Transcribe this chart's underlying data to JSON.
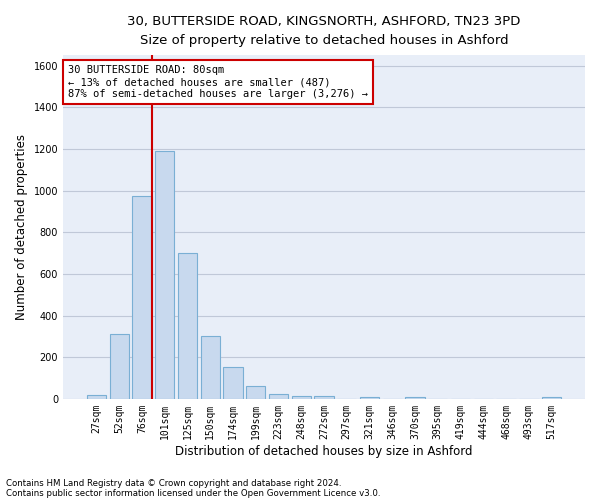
{
  "title1": "30, BUTTERSIDE ROAD, KINGSNORTH, ASHFORD, TN23 3PD",
  "title2": "Size of property relative to detached houses in Ashford",
  "xlabel": "Distribution of detached houses by size in Ashford",
  "ylabel": "Number of detached properties",
  "categories": [
    "27sqm",
    "52sqm",
    "76sqm",
    "101sqm",
    "125sqm",
    "150sqm",
    "174sqm",
    "199sqm",
    "223sqm",
    "248sqm",
    "272sqm",
    "297sqm",
    "321sqm",
    "346sqm",
    "370sqm",
    "395sqm",
    "419sqm",
    "444sqm",
    "468sqm",
    "493sqm",
    "517sqm"
  ],
  "values": [
    20,
    310,
    975,
    1190,
    700,
    300,
    155,
    60,
    25,
    15,
    15,
    0,
    10,
    0,
    10,
    0,
    0,
    0,
    0,
    0,
    10
  ],
  "bar_color": "#c8d9ee",
  "bar_edge_color": "#7aafd4",
  "annotation_line1": "30 BUTTERSIDE ROAD: 80sqm",
  "annotation_line2": "← 13% of detached houses are smaller (487)",
  "annotation_line3": "87% of semi-detached houses are larger (3,276) →",
  "annotation_box_color": "#ffffff",
  "annotation_box_edge": "#cc0000",
  "vline_color": "#cc0000",
  "ylim": [
    0,
    1650
  ],
  "yticks": [
    0,
    200,
    400,
    600,
    800,
    1000,
    1200,
    1400,
    1600
  ],
  "grid_color": "#c0c8d8",
  "background_color": "#e8eef8",
  "footnote1": "Contains HM Land Registry data © Crown copyright and database right 2024.",
  "footnote2": "Contains public sector information licensed under the Open Government Licence v3.0.",
  "title1_fontsize": 9.5,
  "title2_fontsize": 9,
  "xlabel_fontsize": 8.5,
  "ylabel_fontsize": 8.5,
  "tick_fontsize": 7,
  "annotation_fontsize": 7.5,
  "footnote_fontsize": 6.2,
  "vline_x_index": 2.43
}
